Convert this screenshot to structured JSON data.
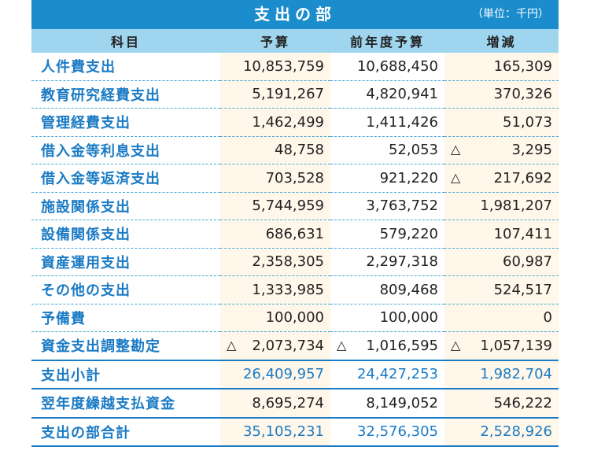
{
  "title": "支出の部",
  "unit": "（単位：千円）",
  "headers": [
    "科目",
    "予算",
    "前年度予算",
    "増減"
  ],
  "triangle": "△",
  "rows": [
    {
      "name": "人件費支出",
      "budget": "10,853,759",
      "prev": "10,688,450",
      "diff": "165,309"
    },
    {
      "name": "教育研究経費支出",
      "budget": "5,191,267",
      "prev": "4,820,941",
      "diff": "370,326"
    },
    {
      "name": "管理経費支出",
      "budget": "1,462,499",
      "prev": "1,411,426",
      "diff": "51,073"
    },
    {
      "name": "借入金等利息支出",
      "budget": "48,758",
      "prev": "52,053",
      "diff": "3,295",
      "diff_neg": true
    },
    {
      "name": "借入金等返済支出",
      "budget": "703,528",
      "prev": "921,220",
      "diff": "217,692",
      "diff_neg": true
    },
    {
      "name": "施設関係支出",
      "budget": "5,744,959",
      "prev": "3,763,752",
      "diff": "1,981,207"
    },
    {
      "name": "設備関係支出",
      "budget": "686,631",
      "prev": "579,220",
      "diff": "107,411"
    },
    {
      "name": "資産運用支出",
      "budget": "2,358,305",
      "prev": "2,297,318",
      "diff": "60,987"
    },
    {
      "name": "その他の支出",
      "budget": "1,333,985",
      "prev": "809,468",
      "diff": "524,517"
    },
    {
      "name": "予備費",
      "budget": "100,000",
      "prev": "100,000",
      "diff": "0"
    },
    {
      "name": "資金支出調整勘定",
      "budget": "2,073,734",
      "budget_neg": true,
      "prev": "1,016,595",
      "prev_neg": true,
      "diff": "1,057,139",
      "diff_neg": true
    },
    {
      "name": "支出小計",
      "budget": "26,409,957",
      "prev": "24,427,253",
      "diff": "1,982,704",
      "kind": "subtotal"
    },
    {
      "name": "翌年度繰越支払資金",
      "budget": "8,695,274",
      "prev": "8,149,052",
      "diff": "546,222"
    },
    {
      "name": "支出の部合計",
      "budget": "35,105,231",
      "prev": "32,576,305",
      "diff": "2,528,926",
      "kind": "total"
    }
  ]
}
